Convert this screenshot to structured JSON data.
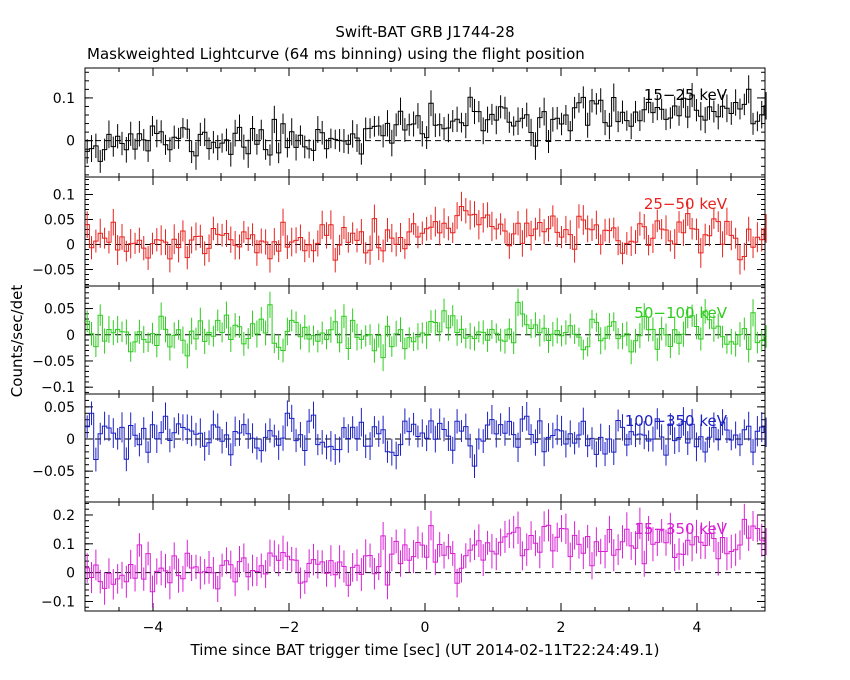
{
  "figure": {
    "title": "Swift-BAT GRB J1744-28",
    "subtitle": "Maskweighted Lightcurve (64 ms binning) using the flight position",
    "xlabel": "Time since BAT trigger time [sec] (UT 2014-02-11T22:24:49.1)",
    "ylabel": "Counts/sec/det"
  },
  "chart_data": [
    {
      "type": "line",
      "name": "15-25 keV",
      "label": "15−25 keV",
      "color": "#000000",
      "xlim": [
        -5,
        5
      ],
      "ylim": [
        -0.085,
        0.17
      ],
      "yticks": [
        0,
        0.1
      ],
      "ytick_labels": [
        "0",
        "0.1"
      ],
      "bin_width": 0.064,
      "baseline": 0,
      "trend": {
        "x": [
          -5,
          -2,
          -0.5,
          0.5,
          2,
          3,
          5
        ],
        "y": [
          0.0,
          0.0,
          0.02,
          0.05,
          0.05,
          0.07,
          0.06
        ]
      },
      "noise_sigma": 0.022,
      "err_halfwidth": 0.028,
      "seed": 11
    },
    {
      "type": "line",
      "name": "25-50 keV",
      "label": "25−50 keV",
      "color": "#e8211d",
      "xlim": [
        -5,
        5
      ],
      "ylim": [
        -0.083,
        0.135
      ],
      "yticks": [
        -0.05,
        0,
        0.05,
        0.1
      ],
      "ytick_labels": [
        "−0.05",
        "0",
        "0.05",
        "0.1"
      ],
      "bin_width": 0.064,
      "baseline": 0,
      "trend": {
        "x": [
          -5,
          -1,
          0,
          0.5,
          1.5,
          3,
          5
        ],
        "y": [
          0.0,
          0.005,
          0.02,
          0.045,
          0.03,
          0.025,
          0.02
        ]
      },
      "noise_sigma": 0.02,
      "err_halfwidth": 0.025,
      "seed": 23
    },
    {
      "type": "line",
      "name": "50-100 keV",
      "label": "50−100 keV",
      "color": "#2ecc1e",
      "xlim": [
        -5,
        5
      ],
      "ylim": [
        -0.113,
        0.093
      ],
      "yticks": [
        -0.1,
        -0.05,
        0,
        0.05
      ],
      "ytick_labels": [
        "−0.1",
        "−0.05",
        "0",
        "0.05"
      ],
      "bin_width": 0.064,
      "baseline": 0,
      "trend": {
        "x": [
          -5,
          0,
          5
        ],
        "y": [
          0.005,
          0.005,
          0.008
        ]
      },
      "noise_sigma": 0.018,
      "err_halfwidth": 0.022,
      "seed": 37
    },
    {
      "type": "line",
      "name": "100-350 keV",
      "label": "100−350 keV",
      "color": "#1c20c4",
      "xlim": [
        -5,
        5
      ],
      "ylim": [
        -0.098,
        0.07
      ],
      "yticks": [
        -0.05,
        0,
        0.05
      ],
      "ytick_labels": [
        "−0.05",
        "0",
        "0.05"
      ],
      "bin_width": 0.064,
      "baseline": 0,
      "trend": {
        "x": [
          -5,
          0,
          5
        ],
        "y": [
          0.003,
          0.004,
          0.002
        ]
      },
      "noise_sigma": 0.016,
      "err_halfwidth": 0.02,
      "seed": 53
    },
    {
      "type": "line",
      "name": "15-350 keV",
      "label": "15−350 keV",
      "color": "#d91ed6",
      "xlim": [
        -5,
        5
      ],
      "ylim": [
        -0.133,
        0.245
      ],
      "yticks": [
        -0.1,
        0,
        0.1,
        0.2
      ],
      "ytick_labels": [
        "−0.1",
        "0",
        "0.1",
        "0.2"
      ],
      "bin_width": 0.064,
      "baseline": 0,
      "trend": {
        "x": [
          -5,
          -1,
          0,
          1,
          2.5,
          3.5,
          5
        ],
        "y": [
          0.0,
          0.02,
          0.07,
          0.1,
          0.1,
          0.12,
          0.09
        ]
      },
      "noise_sigma": 0.04,
      "err_halfwidth": 0.05,
      "seed": 71
    }
  ],
  "x_axis": {
    "ticks": [
      -4,
      -2,
      0,
      2,
      4
    ],
    "tick_labels": [
      "−4",
      "−2",
      "0",
      "2",
      "4"
    ]
  }
}
